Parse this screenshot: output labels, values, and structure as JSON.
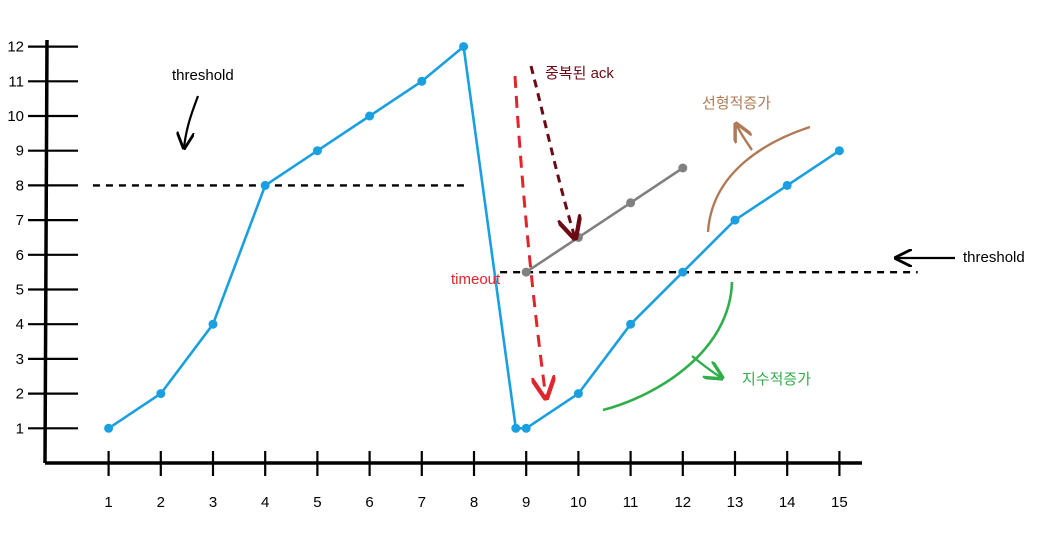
{
  "chart_data": {
    "type": "line",
    "title": "",
    "xlabel": "",
    "ylabel": "",
    "x_ticks": [
      1,
      2,
      3,
      4,
      5,
      6,
      7,
      8,
      9,
      10,
      11,
      12,
      13,
      14,
      15
    ],
    "y_ticks": [
      1,
      2,
      3,
      4,
      5,
      6,
      7,
      8,
      9,
      10,
      11,
      12
    ],
    "xlim": [
      0,
      15.5
    ],
    "ylim": [
      0,
      12
    ],
    "series": [
      {
        "role": "main",
        "color": "#1a9fe0",
        "points": [
          [
            1,
            1
          ],
          [
            2,
            2
          ],
          [
            3,
            4
          ],
          [
            4,
            8
          ],
          [
            5,
            9
          ],
          [
            6,
            10
          ],
          [
            7,
            11
          ],
          [
            7.8,
            12
          ],
          [
            8.8,
            1
          ],
          [
            9,
            1
          ],
          [
            10,
            2
          ],
          [
            11,
            4
          ],
          [
            12,
            5.5
          ],
          [
            13,
            7
          ],
          [
            14,
            8
          ],
          [
            15,
            9
          ]
        ]
      },
      {
        "role": "alternative",
        "color": "#808080",
        "points": [
          [
            9,
            5.5
          ],
          [
            10,
            6.5
          ],
          [
            11,
            7.5
          ],
          [
            12,
            8.5
          ]
        ]
      }
    ],
    "thresholds": [
      {
        "label": "threshold",
        "y": 8,
        "x_range": [
          0.7,
          7.9
        ]
      },
      {
        "label": "threshold",
        "y": 5.5,
        "x_range": [
          8.5,
          16.5
        ]
      }
    ],
    "annotations": [
      {
        "text": "threshold",
        "color": "#000000"
      },
      {
        "text": "threshold",
        "color": "#000000"
      },
      {
        "text": "중복된 ack",
        "color": "#6b0a14"
      },
      {
        "text": "timeout",
        "color": "#e0262d"
      },
      {
        "text": "선형적증가",
        "color": "#b07a56"
      },
      {
        "text": "지수적증가",
        "color": "#2fae4a"
      }
    ]
  }
}
